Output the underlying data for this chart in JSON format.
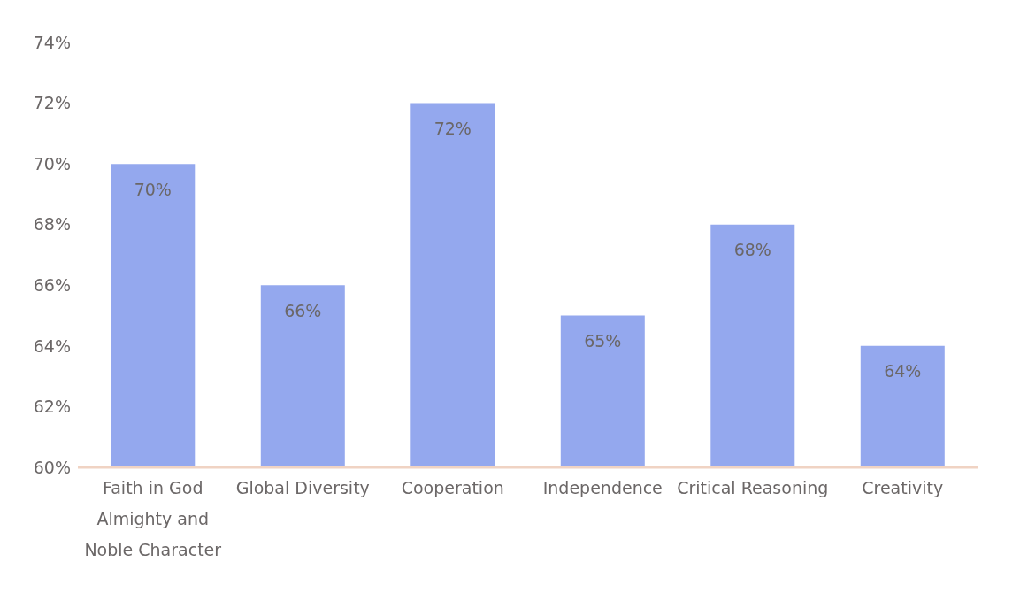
{
  "chart_data": {
    "type": "bar",
    "categories": [
      "Faith in God Almighty and Noble Character",
      "Global Diversity",
      "Cooperation",
      "Independence",
      "Critical Reasoning",
      "Creativity"
    ],
    "values": [
      70,
      66,
      72,
      65,
      68,
      64
    ],
    "color": "#94a8ee",
    "value_labels": [
      "70%",
      "66%",
      "72%",
      "65%",
      "68%",
      "64%"
    ],
    "ylim": [
      60,
      74
    ],
    "yticks": [
      {
        "value": 60,
        "label": "60%"
      },
      {
        "value": 62,
        "label": "62%"
      },
      {
        "value": 64,
        "label": "64%"
      },
      {
        "value": 66,
        "label": "66%"
      },
      {
        "value": 68,
        "label": "68%"
      },
      {
        "value": 70,
        "label": "70%"
      },
      {
        "value": 72,
        "label": "72%"
      },
      {
        "value": 74,
        "label": "74%"
      }
    ],
    "grid": false
  }
}
